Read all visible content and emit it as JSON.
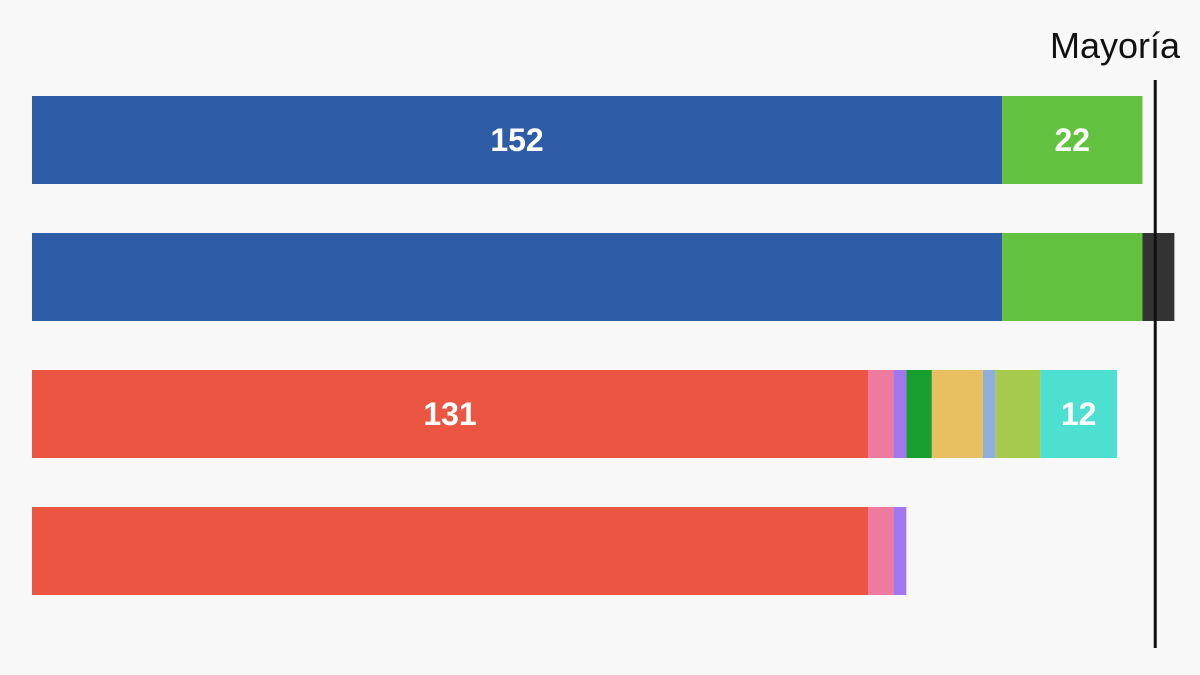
{
  "chart_data": {
    "type": "bar",
    "orientation": "horizontal",
    "stacked": true,
    "x_range": [
      0,
      178
    ],
    "majority": {
      "label": "Mayoría",
      "value": 176
    },
    "rows": [
      {
        "segments": [
          {
            "value": 152,
            "color": "#2e5ca6",
            "label": "152"
          },
          {
            "value": 22,
            "color": "#62c240",
            "label": "22"
          }
        ]
      },
      {
        "segments": [
          {
            "value": 152,
            "color": "#2e5ca6",
            "label": ""
          },
          {
            "value": 22,
            "color": "#62c240",
            "label": ""
          },
          {
            "value": 5,
            "color": "#333333",
            "label": ""
          }
        ]
      },
      {
        "segments": [
          {
            "value": 131,
            "color": "#eb5642",
            "label": "131"
          },
          {
            "value": 4,
            "color": "#ee7aa0",
            "label": ""
          },
          {
            "value": 2,
            "color": "#a077ef",
            "label": ""
          },
          {
            "value": 4,
            "color": "#179e2f",
            "label": ""
          },
          {
            "value": 8,
            "color": "#e8c062",
            "label": ""
          },
          {
            "value": 2,
            "color": "#8eb0d8",
            "label": ""
          },
          {
            "value": 7,
            "color": "#a6cb4c",
            "label": ""
          },
          {
            "value": 12,
            "color": "#4de0d0",
            "label": "12"
          }
        ]
      },
      {
        "segments": [
          {
            "value": 131,
            "color": "#eb5642",
            "label": ""
          },
          {
            "value": 4,
            "color": "#ee7aa0",
            "label": ""
          },
          {
            "value": 2,
            "color": "#a077ef",
            "label": ""
          }
        ]
      }
    ]
  }
}
